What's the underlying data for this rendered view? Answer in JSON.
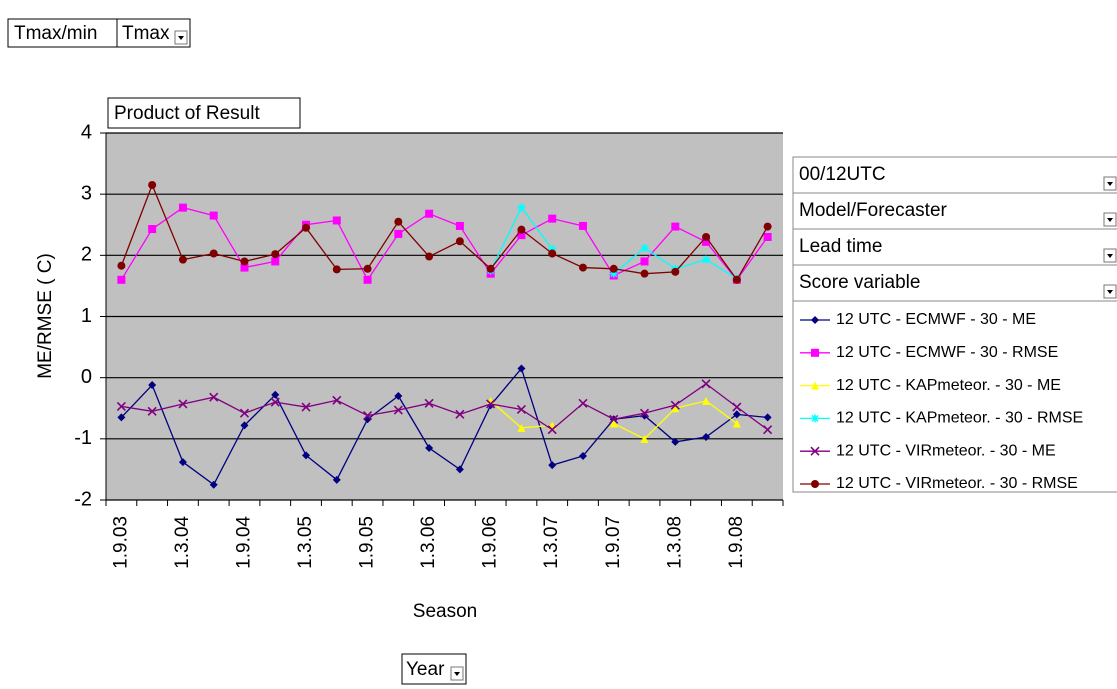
{
  "ui": {
    "page_field": "Tmax/min",
    "page_value": "Tmax",
    "data_field": "Product of Result",
    "row_field": "Year",
    "series_fields": [
      "00/12UTC",
      "Model/Forecaster",
      "Lead time",
      "Score variable"
    ]
  },
  "chart_data": {
    "type": "line",
    "y_label": "ME/RMSE ( C)",
    "x_label": "Season",
    "categories": [
      "1.9.03",
      null,
      "1.3.04",
      null,
      "1.9.04",
      null,
      "1.3.05",
      null,
      "1.9.05",
      null,
      "1.3.06",
      null,
      "1.9.06",
      null,
      "1.3.07",
      null,
      "1.9.07",
      null,
      "1.3.08",
      null,
      "1.9.08",
      null
    ],
    "ylim": [
      -2,
      4
    ],
    "yticks": [
      -2,
      -1,
      0,
      1,
      2,
      3,
      4
    ],
    "grid": true,
    "series": [
      {
        "name": "12 UTC - ECMWF - 30 - ME",
        "color": "#000080",
        "marker": "diamond",
        "values": [
          -0.65,
          -0.12,
          -1.38,
          -1.75,
          -0.78,
          -0.28,
          -1.27,
          -1.67,
          -0.68,
          -0.3,
          -1.15,
          -1.5,
          -0.45,
          0.15,
          -1.43,
          -1.28,
          -0.68,
          -0.62,
          -1.05,
          -0.97,
          -0.6,
          -0.65
        ]
      },
      {
        "name": "12 UTC - ECMWF - 30 - RMSE",
        "color": "#ff00ff",
        "marker": "square",
        "values": [
          1.6,
          2.43,
          2.78,
          2.65,
          1.8,
          1.9,
          2.5,
          2.57,
          1.6,
          2.35,
          2.68,
          2.48,
          1.7,
          2.33,
          2.6,
          2.48,
          1.67,
          1.9,
          2.47,
          2.22,
          1.6,
          2.3
        ]
      },
      {
        "name": "12 UTC - KAPmeteor. - 30 - ME",
        "color": "#ffff00",
        "marker": "triangle",
        "values": [
          null,
          null,
          null,
          null,
          null,
          null,
          null,
          null,
          null,
          null,
          null,
          null,
          -0.38,
          -0.82,
          -0.78,
          null,
          -0.75,
          -1.0,
          -0.5,
          -0.38,
          -0.75,
          null
        ]
      },
      {
        "name": "12 UTC - KAPmeteor. - 30 - RMSE",
        "color": "#00ffff",
        "marker": "star",
        "values": [
          null,
          null,
          null,
          null,
          null,
          null,
          null,
          null,
          null,
          null,
          null,
          null,
          1.75,
          2.78,
          2.1,
          null,
          1.7,
          2.12,
          1.78,
          1.93,
          1.62,
          null
        ]
      },
      {
        "name": "12 UTC - VIRmeteor. - 30 - ME",
        "color": "#800080",
        "marker": "cross",
        "values": [
          -0.47,
          -0.55,
          -0.43,
          -0.32,
          -0.58,
          -0.4,
          -0.48,
          -0.37,
          -0.62,
          -0.53,
          -0.42,
          -0.6,
          -0.43,
          -0.52,
          -0.85,
          -0.42,
          -0.68,
          -0.58,
          -0.45,
          -0.1,
          -0.48,
          -0.85
        ]
      },
      {
        "name": "12 UTC - VIRmeteor. - 30 - RMSE",
        "color": "#800000",
        "marker": "circle",
        "values": [
          1.83,
          3.15,
          1.93,
          2.03,
          1.9,
          2.02,
          2.45,
          1.77,
          1.78,
          2.55,
          1.98,
          2.23,
          1.78,
          2.42,
          2.03,
          1.8,
          1.78,
          1.7,
          1.73,
          2.3,
          1.6,
          2.47
        ]
      }
    ]
  }
}
